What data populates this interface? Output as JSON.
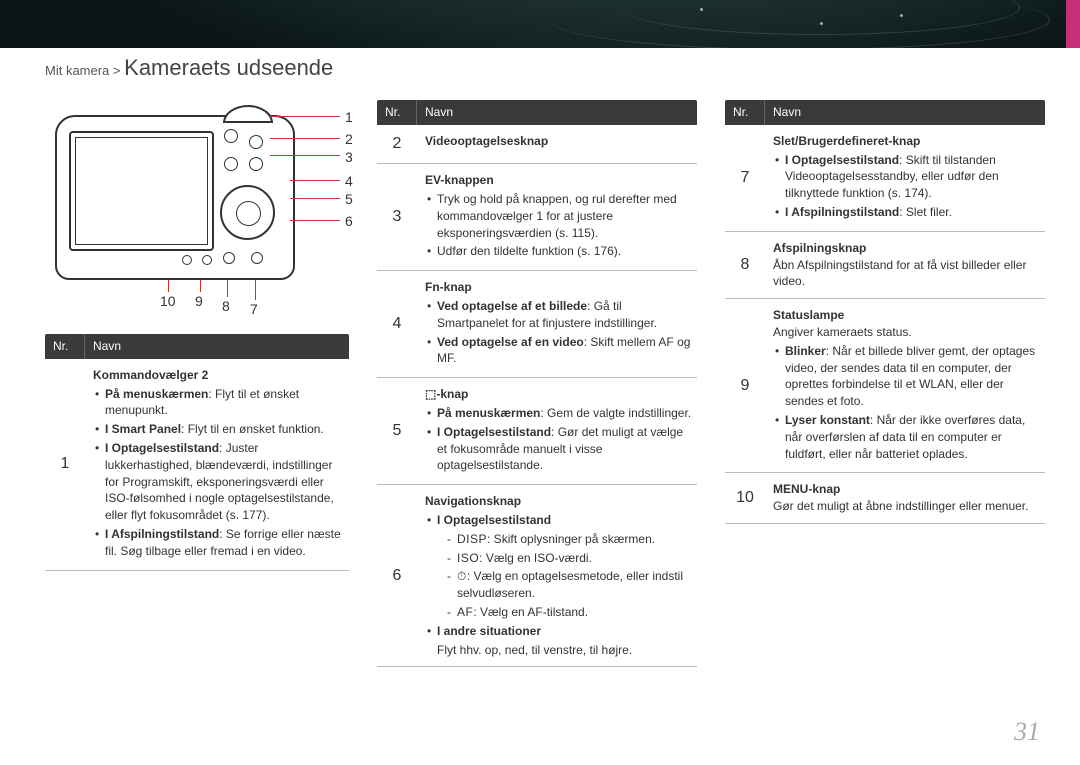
{
  "breadcrumb": {
    "parent": "Mit kamera",
    "sep": ">",
    "current": "Kameraets udseende"
  },
  "pageNumber": "31",
  "headers": {
    "nr": "Nr.",
    "navn": "Navn"
  },
  "callouts": [
    "1",
    "2",
    "3",
    "4",
    "5",
    "6",
    "7",
    "8",
    "9",
    "10"
  ],
  "col1": {
    "rows": [
      {
        "nr": "1",
        "title": "Kommandovælger 2",
        "items": [
          {
            "bold": "På menuskærmen",
            "text": ": Flyt til et ønsket menupunkt."
          },
          {
            "bold": "I Smart Panel",
            "text": ": Flyt til en ønsket funktion."
          },
          {
            "bold": "I Optagelsestilstand",
            "text": ": Juster lukkerhastighed, blændeværdi, indstillinger for Programskift, eksponeringsværdi eller ISO-følsomhed i nogle optagelsestilstande, eller flyt fokusområdet (s. 177)."
          },
          {
            "bold": "I Afspilningstilstand",
            "text": ": Se forrige eller næste fil. Søg tilbage eller fremad i en video."
          }
        ]
      }
    ]
  },
  "col2": {
    "rows": [
      {
        "nr": "2",
        "title": "Videooptagelsesknap"
      },
      {
        "nr": "3",
        "title": "EV-knappen",
        "items": [
          {
            "text": "Tryk og hold på knappen, og rul derefter med kommandovælger 1 for at justere eksponeringsværdien (s. 115)."
          },
          {
            "text": "Udfør den tildelte funktion (s. 176)."
          }
        ]
      },
      {
        "nr": "4",
        "title": "Fn-knap",
        "items": [
          {
            "bold": "Ved optagelse af et billede",
            "text": ": Gå til Smartpanelet for at finjustere indstillinger."
          },
          {
            "bold": "Ved optagelse af en video",
            "text": ": Skift mellem AF og MF."
          }
        ]
      },
      {
        "nr": "5",
        "title": "⬚-knap",
        "items": [
          {
            "bold": "På menuskærmen",
            "text": ": Gem de valgte indstillinger."
          },
          {
            "bold": "I Optagelsestilstand",
            "text": ": Gør det muligt at vælge et fokusområde manuelt i visse optagelsestilstande."
          }
        ]
      },
      {
        "nr": "6",
        "title": "Navigationsknap",
        "items": [
          {
            "bold": "I Optagelsestilstand",
            "text": "",
            "sub": [
              {
                "label": "DISP",
                "text": ": Skift oplysninger på skærmen."
              },
              {
                "label": "ISO",
                "text": ": Vælg en ISO-værdi."
              },
              {
                "label": "⏱",
                "text": ": Vælg en optagelsesmetode, eller indstil selvudløseren."
              },
              {
                "label": "AF",
                "text": ": Vælg en AF-tilstand."
              }
            ]
          },
          {
            "bold": "I andre situationer",
            "plain": "Flyt hhv. op, ned, til venstre, til højre."
          }
        ]
      }
    ]
  },
  "col3": {
    "rows": [
      {
        "nr": "7",
        "title": "Slet/Brugerdefineret-knap",
        "items": [
          {
            "bold": "I Optagelsestilstand",
            "text": ": Skift til tilstanden Videooptagelsesstandby, eller udfør den tilknyttede funktion (s. 174)."
          },
          {
            "bold": "I Afspilningstilstand",
            "text": ": Slet filer."
          }
        ]
      },
      {
        "nr": "8",
        "title": "Afspilningsknap",
        "plain": "Åbn Afspilningstilstand for at få vist billeder eller video."
      },
      {
        "nr": "9",
        "title": "Statuslampe",
        "plain": "Angiver kameraets status.",
        "items": [
          {
            "bold": "Blinker",
            "text": ": Når et billede bliver gemt, der optages video, der sendes data til en computer, der oprettes forbindelse til et WLAN, eller der sendes et foto."
          },
          {
            "bold": "Lyser konstant",
            "text": ": Når der ikke overføres data, når overførslen af data til en computer er fuldført, eller når batteriet oplades."
          }
        ]
      },
      {
        "nr": "10",
        "title": "MENU-knap",
        "plain": "Gør det muligt at åbne indstillinger eller menuer."
      }
    ]
  }
}
